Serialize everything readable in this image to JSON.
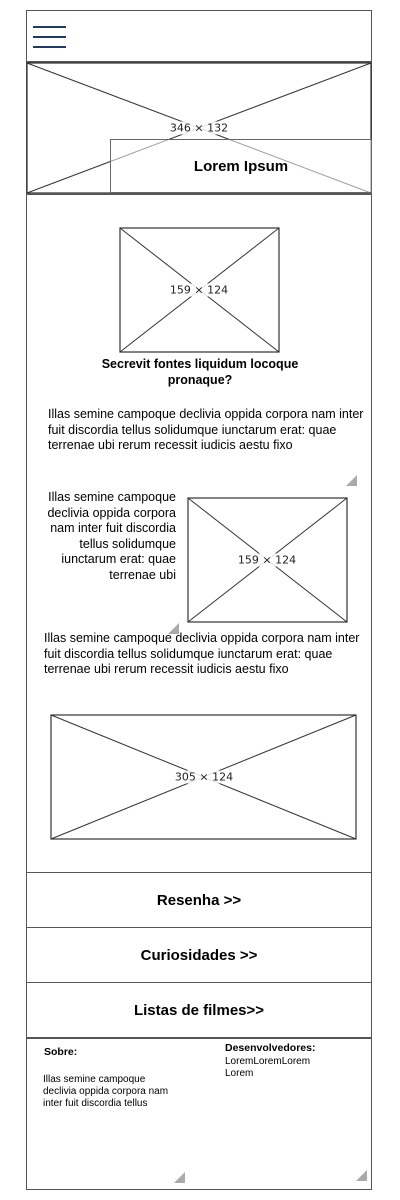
{
  "hero": {
    "image_label": "346 × 132",
    "title": "Lorem Ipsum"
  },
  "article": {
    "image1_label": "159 × 124",
    "heading": "Secrevit fontes liquidum locoque pronaque?",
    "paragraph1": "Illas semine campoque declivia oppida corpora nam inter fuit discordia tellus solidumque iunctarum erat: quae terrenae ubi rerum recessit iudicis aestu fixo",
    "paragraph2": "Illas semine campoque declivia oppida corpora nam inter fuit discordia tellus solidumque iunctarum erat: quae terrenae ubi",
    "image2_label": "159 × 124",
    "paragraph3": "Illas semine campoque declivia oppida corpora nam inter fuit discordia tellus solidumque iunctarum erat: quae terrenae ubi rerum recessit iudicis aestu fixo",
    "image3_label": "305 × 124"
  },
  "nav": {
    "resenha": "Resenha >>",
    "curiosidades": "Curiosidades >>",
    "listas": "Listas de filmes>>"
  },
  "footer": {
    "about_title": "Sobre:",
    "about_text": "Illas semine campoque declivia oppida corpora nam inter fuit discordia tellus",
    "devs_title": "Desenvolvedores:",
    "devs_text": "LoremLoremLorem Lorem"
  }
}
